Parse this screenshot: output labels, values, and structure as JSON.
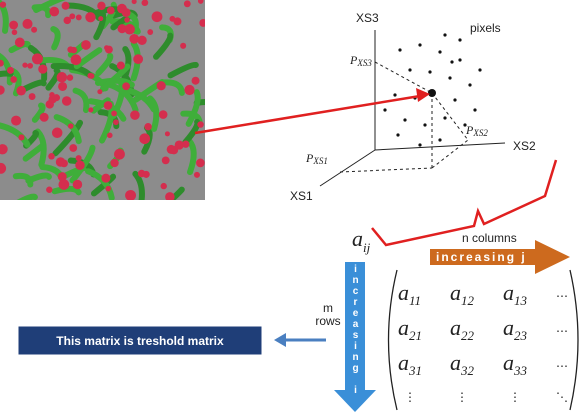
{
  "axes": {
    "xs3": "XS3",
    "xs2": "XS2",
    "xs1": "XS1",
    "pixels": "pixels",
    "projections": [
      {
        "base": "P",
        "sub": "XS3"
      },
      {
        "base": "P",
        "sub": "XS2"
      },
      {
        "base": "P",
        "sub": "XS1"
      }
    ]
  },
  "matrix": {
    "element": {
      "base": "a",
      "sub": "ij"
    },
    "columns_label": "n columns",
    "increasing_j": "increasing j",
    "increasing_i": "increasing i",
    "rows_label": [
      "m",
      "rows"
    ],
    "entries": [
      [
        {
          "base": "a",
          "sub": "11"
        },
        {
          "base": "a",
          "sub": "12"
        },
        {
          "base": "a",
          "sub": "13"
        },
        "⋯"
      ],
      [
        {
          "base": "a",
          "sub": "21"
        },
        {
          "base": "a",
          "sub": "22"
        },
        {
          "base": "a",
          "sub": "23"
        },
        "⋯"
      ],
      [
        {
          "base": "a",
          "sub": "31"
        },
        {
          "base": "a",
          "sub": "32"
        },
        {
          "base": "a",
          "sub": "33"
        },
        "⋯"
      ],
      [
        "⋮",
        "⋮",
        "⋮",
        "⋱"
      ]
    ]
  },
  "note": "This matrix is treshold matrix"
}
